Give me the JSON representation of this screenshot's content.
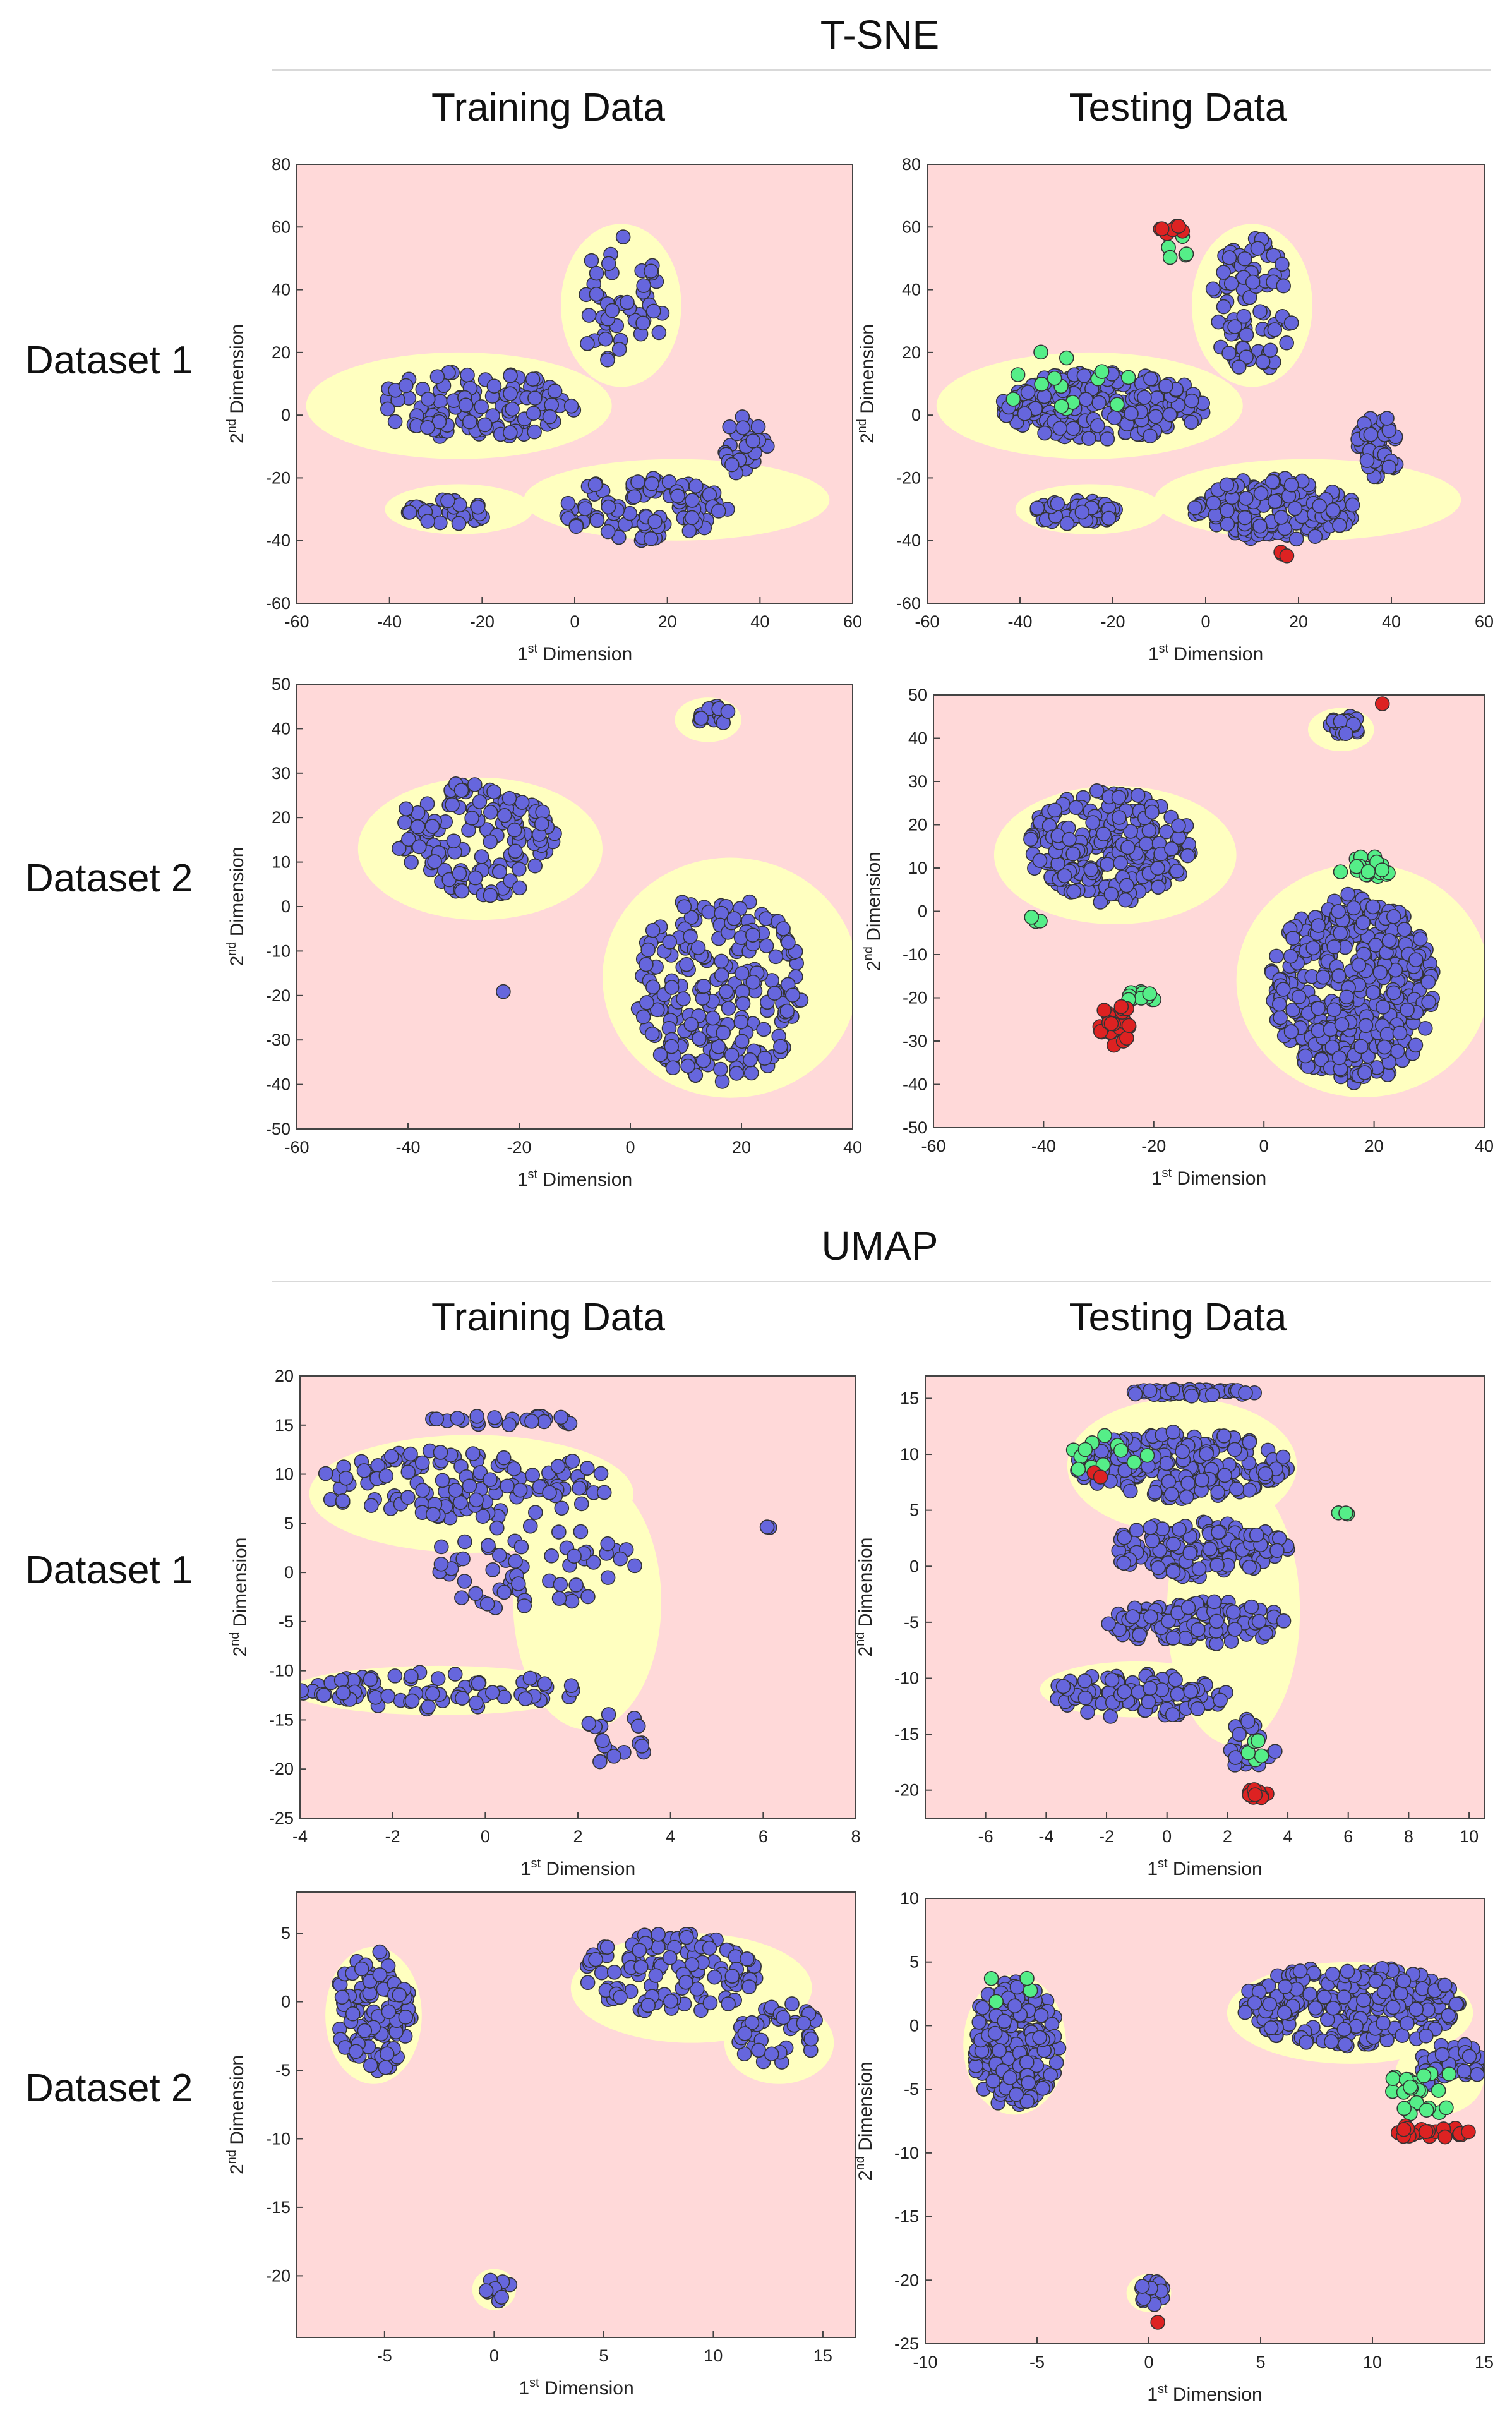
{
  "sections": [
    {
      "title": "T-SNE"
    },
    {
      "title": "UMAP"
    }
  ],
  "column_titles": [
    "Training Data",
    "Testing Data"
  ],
  "row_labels": [
    "Dataset 1",
    "Dataset 2"
  ],
  "axis_text": {
    "x_prefix": "1",
    "x_sup": "st",
    "x_suffix": " Dimension",
    "y_prefix": "2",
    "y_sup": "nd",
    "y_suffix": " Dimension"
  },
  "colors": {
    "background": "#ffd9d9",
    "region": "#ffffc0",
    "normal": "#6666dd",
    "green": "#55ee88",
    "red": "#dd2222",
    "outline": "#333333"
  },
  "chart_data": [
    {
      "id": "tsne-d1-train",
      "type": "scatter",
      "title": "T-SNE Dataset 1 Training Data",
      "xlim": [
        -60,
        60
      ],
      "ylim": [
        -60,
        80
      ],
      "xticks": [
        -60,
        -40,
        -20,
        0,
        20,
        40,
        60
      ],
      "yticks": [
        -60,
        -40,
        -20,
        0,
        20,
        40,
        60,
        80
      ],
      "clusters": [
        {
          "class": "normal",
          "cx": -22,
          "cy": 3,
          "rx": 22,
          "ry": 11,
          "n": 120
        },
        {
          "class": "normal",
          "cx": 10,
          "cy": 35,
          "rx": 9,
          "ry": 22,
          "n": 50
        },
        {
          "class": "normal",
          "cx": -28,
          "cy": -31,
          "rx": 9,
          "ry": 4,
          "n": 35
        },
        {
          "class": "normal",
          "cx": 15,
          "cy": -30,
          "rx": 18,
          "ry": 10,
          "n": 90
        },
        {
          "class": "normal",
          "cx": 37,
          "cy": -10,
          "rx": 5,
          "ry": 10,
          "n": 30
        }
      ],
      "regions": [
        {
          "cx": -25,
          "cy": 3,
          "rx": 33,
          "ry": 17
        },
        {
          "cx": 10,
          "cy": 35,
          "rx": 13,
          "ry": 26
        },
        {
          "cx": -25,
          "cy": -30,
          "rx": 16,
          "ry": 8
        },
        {
          "cx": 22,
          "cy": -27,
          "rx": 33,
          "ry": 13
        }
      ]
    },
    {
      "id": "tsne-d1-test",
      "type": "scatter",
      "title": "T-SNE Dataset 1 Testing Data",
      "xlim": [
        -60,
        60
      ],
      "ylim": [
        -60,
        80
      ],
      "xticks": [
        -60,
        -40,
        -20,
        0,
        20,
        40,
        60
      ],
      "yticks": [
        -60,
        -40,
        -20,
        0,
        20,
        40,
        60,
        80
      ],
      "clusters": [
        {
          "class": "normal",
          "cx": -22,
          "cy": 3,
          "rx": 22,
          "ry": 11,
          "n": 220
        },
        {
          "class": "normal",
          "cx": 10,
          "cy": 35,
          "rx": 9,
          "ry": 22,
          "n": 90
        },
        {
          "class": "normal",
          "cx": -28,
          "cy": -31,
          "rx": 9,
          "ry": 4,
          "n": 60
        },
        {
          "class": "normal",
          "cx": 15,
          "cy": -30,
          "rx": 18,
          "ry": 10,
          "n": 170
        },
        {
          "class": "normal",
          "cx": 37,
          "cy": -10,
          "rx": 5,
          "ry": 10,
          "n": 50
        },
        {
          "class": "green",
          "cx": -30,
          "cy": 10,
          "rx": 14,
          "ry": 12,
          "n": 14
        },
        {
          "class": "green",
          "cx": -5,
          "cy": 53,
          "rx": 4,
          "ry": 4,
          "n": 5
        },
        {
          "class": "red",
          "cx": -7,
          "cy": 59,
          "rx": 3,
          "ry": 1.5,
          "n": 9
        },
        {
          "class": "red",
          "cx": 17,
          "cy": -44,
          "rx": 1.2,
          "ry": 1,
          "n": 3
        }
      ],
      "regions": [
        {
          "cx": -25,
          "cy": 3,
          "rx": 33,
          "ry": 17
        },
        {
          "cx": 10,
          "cy": 35,
          "rx": 13,
          "ry": 26
        },
        {
          "cx": -25,
          "cy": -30,
          "rx": 16,
          "ry": 8
        },
        {
          "cx": 22,
          "cy": -27,
          "rx": 33,
          "ry": 13
        }
      ]
    },
    {
      "id": "tsne-d2-train",
      "type": "scatter",
      "title": "T-SNE Dataset 2 Training Data",
      "xlim": [
        -60,
        40
      ],
      "ylim": [
        -50,
        50
      ],
      "xticks": [
        -60,
        -40,
        -20,
        0,
        20,
        40
      ],
      "yticks": [
        -50,
        -40,
        -30,
        -20,
        -10,
        0,
        10,
        20,
        30,
        40,
        50
      ],
      "clusters": [
        {
          "class": "normal",
          "cx": -28,
          "cy": 15,
          "rx": 15,
          "ry": 13,
          "n": 140
        },
        {
          "class": "normal",
          "cx": 16,
          "cy": -18,
          "rx": 15,
          "ry": 22,
          "n": 230
        },
        {
          "class": "normal",
          "cx": 15,
          "cy": 43,
          "rx": 3,
          "ry": 2.5,
          "n": 15
        },
        {
          "class": "normal",
          "cx": -23,
          "cy": -19,
          "rx": 0.3,
          "ry": 0.3,
          "n": 1
        }
      ],
      "regions": [
        {
          "cx": -27,
          "cy": 13,
          "rx": 22,
          "ry": 16
        },
        {
          "cx": 18,
          "cy": -16,
          "rx": 23,
          "ry": 27
        },
        {
          "cx": 14,
          "cy": 42,
          "rx": 6,
          "ry": 5
        }
      ]
    },
    {
      "id": "tsne-d2-test",
      "type": "scatter",
      "title": "T-SNE Dataset 2 Testing Data",
      "xlim": [
        -60,
        40
      ],
      "ylim": [
        -50,
        50
      ],
      "xticks": [
        -60,
        -40,
        -20,
        0,
        20,
        40
      ],
      "yticks": [
        -50,
        -40,
        -30,
        -20,
        -10,
        0,
        10,
        20,
        30,
        40,
        50
      ],
      "clusters": [
        {
          "class": "normal",
          "cx": -28,
          "cy": 15,
          "rx": 15,
          "ry": 13,
          "n": 240
        },
        {
          "class": "normal",
          "cx": 16,
          "cy": -18,
          "rx": 15,
          "ry": 22,
          "n": 420
        },
        {
          "class": "normal",
          "cx": 15,
          "cy": 43,
          "rx": 3,
          "ry": 2.5,
          "n": 25
        },
        {
          "class": "green",
          "cx": 18,
          "cy": 10,
          "rx": 5,
          "ry": 3,
          "n": 18
        },
        {
          "class": "green",
          "cx": -22,
          "cy": -20,
          "rx": 3,
          "ry": 2.5,
          "n": 12
        },
        {
          "class": "green",
          "cx": -42,
          "cy": -2,
          "rx": 1.5,
          "ry": 1.5,
          "n": 3
        },
        {
          "class": "red",
          "cx": -27,
          "cy": -26,
          "rx": 3,
          "ry": 5,
          "n": 30
        },
        {
          "class": "red",
          "cx": 22,
          "cy": 48,
          "rx": 0.5,
          "ry": 0.5,
          "n": 1
        }
      ],
      "regions": [
        {
          "cx": -27,
          "cy": 13,
          "rx": 22,
          "ry": 16
        },
        {
          "cx": 18,
          "cy": -16,
          "rx": 23,
          "ry": 27
        },
        {
          "cx": 14,
          "cy": 42,
          "rx": 6,
          "ry": 5
        }
      ]
    },
    {
      "id": "umap-d1-train",
      "type": "scatter",
      "title": "UMAP Dataset 1 Training Data",
      "xlim": [
        -4,
        8
      ],
      "ylim": [
        -25,
        20
      ],
      "xticks": [
        -4,
        -2,
        0,
        2,
        4,
        6,
        8
      ],
      "yticks": [
        -25,
        -20,
        -15,
        -10,
        -5,
        0,
        5,
        10,
        15,
        20
      ],
      "clusters": [
        {
          "class": "normal",
          "cx": -0.5,
          "cy": 9,
          "rx": 3.2,
          "ry": 3.5,
          "n": 130
        },
        {
          "class": "normal",
          "cx": 0.5,
          "cy": 15.5,
          "rx": 2,
          "ry": 0.5,
          "n": 25
        },
        {
          "class": "normal",
          "cx": 1,
          "cy": 0.5,
          "rx": 2.3,
          "ry": 4.5,
          "n": 60
        },
        {
          "class": "normal",
          "cx": -1,
          "cy": -12,
          "rx": 3,
          "ry": 2,
          "n": 75
        },
        {
          "class": "normal",
          "cx": 2.8,
          "cy": -17,
          "rx": 0.7,
          "ry": 3,
          "n": 18
        },
        {
          "class": "normal",
          "cx": 6.1,
          "cy": 4.6,
          "rx": 0.12,
          "ry": 0.1,
          "n": 2
        }
      ],
      "regions": [
        {
          "cx": -0.3,
          "cy": 8,
          "rx": 3.5,
          "ry": 6
        },
        {
          "cx": 2.2,
          "cy": -3,
          "rx": 1.6,
          "ry": 13
        },
        {
          "cx": -1,
          "cy": -12,
          "rx": 3.2,
          "ry": 2.5
        }
      ]
    },
    {
      "id": "umap-d1-test",
      "type": "scatter",
      "title": "UMAP Dataset 1 Testing Data",
      "xlim": [
        -8,
        10.5
      ],
      "ylim": [
        -22.5,
        17
      ],
      "xticks": [
        -6,
        -4,
        -2,
        0,
        2,
        4,
        6,
        8,
        10
      ],
      "yticks": [
        -20,
        -15,
        -10,
        -5,
        0,
        5,
        10,
        15
      ],
      "clusters": [
        {
          "class": "normal",
          "cx": 0.5,
          "cy": 9,
          "rx": 3.5,
          "ry": 3,
          "n": 220
        },
        {
          "class": "normal",
          "cx": 0.8,
          "cy": 15.5,
          "rx": 2.1,
          "ry": 0.3,
          "n": 50
        },
        {
          "class": "normal",
          "cx": 1,
          "cy": 1.5,
          "rx": 3,
          "ry": 2.5,
          "n": 140
        },
        {
          "class": "normal",
          "cx": 1,
          "cy": -5,
          "rx": 3,
          "ry": 2,
          "n": 110
        },
        {
          "class": "normal",
          "cx": -1,
          "cy": -11.5,
          "rx": 3,
          "ry": 2,
          "n": 100
        },
        {
          "class": "normal",
          "cx": 2.8,
          "cy": -16,
          "rx": 0.8,
          "ry": 2.5,
          "n": 20
        },
        {
          "class": "green",
          "cx": -2,
          "cy": 10,
          "rx": 1.5,
          "ry": 1.8,
          "n": 12
        },
        {
          "class": "green",
          "cx": 2.8,
          "cy": -16,
          "rx": 0.5,
          "ry": 2,
          "n": 6
        },
        {
          "class": "green",
          "cx": 5.8,
          "cy": 4.7,
          "rx": 0.2,
          "ry": 0.1,
          "n": 3
        },
        {
          "class": "red",
          "cx": 3,
          "cy": -20.3,
          "rx": 0.5,
          "ry": 0.5,
          "n": 10
        },
        {
          "class": "red",
          "cx": -2.3,
          "cy": 8.2,
          "rx": 0.2,
          "ry": 0.3,
          "n": 2
        }
      ],
      "regions": [
        {
          "cx": 0.5,
          "cy": 9,
          "rx": 3.8,
          "ry": 6
        },
        {
          "cx": 2.2,
          "cy": -4,
          "rx": 2.2,
          "ry": 12
        },
        {
          "cx": -1,
          "cy": -11,
          "rx": 3.2,
          "ry": 2.5
        }
      ]
    },
    {
      "id": "umap-d2-train",
      "type": "scatter",
      "title": "UMAP Dataset 2 Training Data",
      "xlim": [
        -9,
        16.5
      ],
      "ylim": [
        -24.5,
        8
      ],
      "xticks": [
        -5,
        0,
        5,
        10,
        15
      ],
      "yticks": [
        -20,
        -15,
        -10,
        -5,
        0,
        5
      ],
      "clusters": [
        {
          "class": "normal",
          "cx": -5.5,
          "cy": -0.8,
          "rx": 1.8,
          "ry": 4.5,
          "n": 110
        },
        {
          "class": "normal",
          "cx": 8,
          "cy": 2,
          "rx": 4,
          "ry": 3,
          "n": 120
        },
        {
          "class": "normal",
          "cx": 13,
          "cy": -2.5,
          "rx": 2,
          "ry": 2.5,
          "n": 45
        },
        {
          "class": "normal",
          "cx": 0.2,
          "cy": -21,
          "rx": 0.6,
          "ry": 1,
          "n": 12
        }
      ],
      "regions": [
        {
          "cx": -5.5,
          "cy": -1,
          "rx": 2.2,
          "ry": 5
        },
        {
          "cx": 9,
          "cy": 1,
          "rx": 5.5,
          "ry": 4
        },
        {
          "cx": 13,
          "cy": -3,
          "rx": 2.5,
          "ry": 3
        },
        {
          "cx": 0,
          "cy": -21,
          "rx": 1,
          "ry": 1.5
        }
      ]
    },
    {
      "id": "umap-d2-test",
      "type": "scatter",
      "title": "UMAP Dataset 2 Testing Data",
      "xlim": [
        -10,
        15
      ],
      "ylim": [
        -25,
        10
      ],
      "xticks": [
        -10,
        -5,
        0,
        5,
        10,
        15
      ],
      "yticks": [
        -25,
        -20,
        -15,
        -10,
        -5,
        0,
        5,
        10
      ],
      "clusters": [
        {
          "class": "normal",
          "cx": -6,
          "cy": -1.5,
          "rx": 2,
          "ry": 5,
          "n": 200
        },
        {
          "class": "normal",
          "cx": 9,
          "cy": 1.5,
          "rx": 5,
          "ry": 3.2,
          "n": 260
        },
        {
          "class": "normal",
          "cx": 13.5,
          "cy": -3,
          "rx": 1.5,
          "ry": 2,
          "n": 40
        },
        {
          "class": "normal",
          "cx": 0.2,
          "cy": -21,
          "rx": 0.6,
          "ry": 1,
          "n": 25
        },
        {
          "class": "green",
          "cx": 12,
          "cy": -4.5,
          "rx": 2,
          "ry": 1,
          "n": 16
        },
        {
          "class": "green",
          "cx": 12,
          "cy": -6.5,
          "rx": 1.5,
          "ry": 0.5,
          "n": 8
        },
        {
          "class": "green",
          "cx": -6,
          "cy": 3,
          "rx": 1.5,
          "ry": 2,
          "n": 4
        },
        {
          "class": "red",
          "cx": 12.5,
          "cy": -8.3,
          "rx": 1.8,
          "ry": 0.6,
          "n": 22
        },
        {
          "class": "red",
          "cx": 0.3,
          "cy": -23.3,
          "rx": 0.1,
          "ry": 0.1,
          "n": 1
        }
      ],
      "regions": [
        {
          "cx": -6,
          "cy": -1.5,
          "rx": 2.3,
          "ry": 5.5
        },
        {
          "cx": 9,
          "cy": 1,
          "rx": 5.5,
          "ry": 4
        },
        {
          "cx": 13,
          "cy": -4,
          "rx": 2,
          "ry": 3
        },
        {
          "cx": 0,
          "cy": -21,
          "rx": 1,
          "ry": 1.5
        }
      ]
    }
  ]
}
